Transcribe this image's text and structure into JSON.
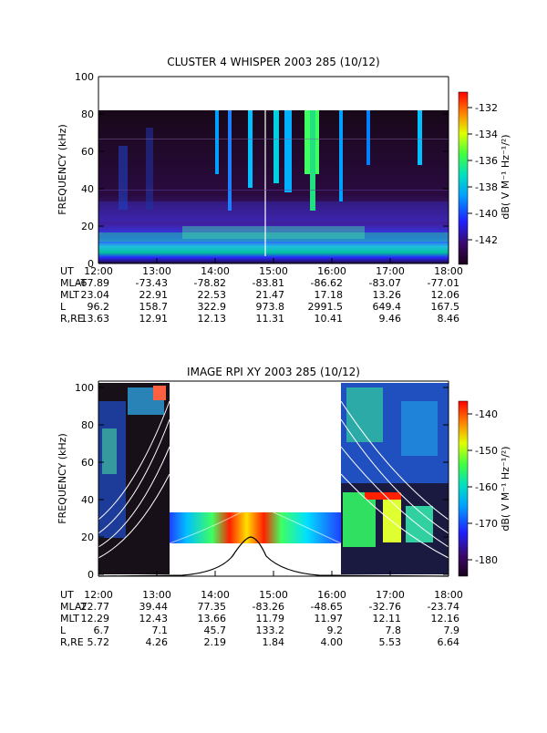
{
  "chart_data": [
    {
      "type": "heatmap",
      "title": "CLUSTER 4 WHISPER 2003 285 (10/12)",
      "ylabel": "FREQUENCY (kHz)",
      "ylim": [
        0,
        100
      ],
      "y_ticks": [
        "0",
        "20",
        "40",
        "60",
        "80",
        "100"
      ],
      "data_ylim": [
        0,
        80
      ],
      "x_ticks": [
        "12:00",
        "13:00",
        "14:00",
        "15:00",
        "16:00",
        "17:00",
        "18:00"
      ],
      "colorbar_label": "dB( V M⁻¹ Hz⁻¹/²)",
      "colorbar_ticks": [
        "-132",
        "-134",
        "-136",
        "-138",
        "-140",
        "-142"
      ],
      "ephemeris": [
        {
          "label": "UT",
          "values": [
            "12:00",
            "13:00",
            "14:00",
            "15:00",
            "16:00",
            "17:00",
            "18:00"
          ]
        },
        {
          "label": "MLAT",
          "values": [
            "-67.89",
            "-73.43",
            "-78.82",
            "-83.81",
            "-86.62",
            "-83.07",
            "-77.01"
          ]
        },
        {
          "label": "MLT",
          "values": [
            "23.04",
            "22.91",
            "22.53",
            "21.47",
            "17.18",
            "13.26",
            "12.06"
          ]
        },
        {
          "label": "L",
          "values": [
            "96.2",
            "158.7",
            "322.9",
            "973.8",
            "2991.5",
            "649.4",
            "167.5"
          ]
        },
        {
          "label": "R,RE",
          "values": [
            "13.63",
            "12.91",
            "12.13",
            "11.31",
            "10.41",
            "9.46",
            "8.46"
          ]
        }
      ]
    },
    {
      "type": "heatmap",
      "title": "IMAGE RPI XY 2003 285 (10/12)",
      "ylabel": "FREQUENCY (kHz)",
      "ylim": [
        0,
        100
      ],
      "y_ticks": [
        "0",
        "20",
        "40",
        "60",
        "80",
        "100"
      ],
      "x_ticks": [
        "12:00",
        "13:00",
        "14:00",
        "15:00",
        "16:00",
        "17:00",
        "18:00"
      ],
      "colorbar_label": "dB( V M⁻¹ Hz⁻¹/²)",
      "colorbar_ticks": [
        "-140",
        "-150",
        "-160",
        "-170",
        "-180"
      ],
      "ephemeris": [
        {
          "label": "UT",
          "values": [
            "12:00",
            "13:00",
            "14:00",
            "15:00",
            "16:00",
            "17:00",
            "18:00"
          ]
        },
        {
          "label": "MLAT",
          "values": [
            "22.77",
            "39.44",
            "77.35",
            "-83.26",
            "-48.65",
            "-32.76",
            "-23.74"
          ]
        },
        {
          "label": "MLT",
          "values": [
            "12.29",
            "12.43",
            "13.66",
            "11.79",
            "11.97",
            "12.11",
            "12.16"
          ]
        },
        {
          "label": "L",
          "values": [
            "6.7",
            "7.1",
            "45.7",
            "133.2",
            "9.2",
            "7.8",
            "7.9"
          ]
        },
        {
          "label": "R,RE",
          "values": [
            "5.72",
            "4.26",
            "2.19",
            "1.84",
            "4.00",
            "5.53",
            "6.64"
          ]
        }
      ]
    }
  ]
}
